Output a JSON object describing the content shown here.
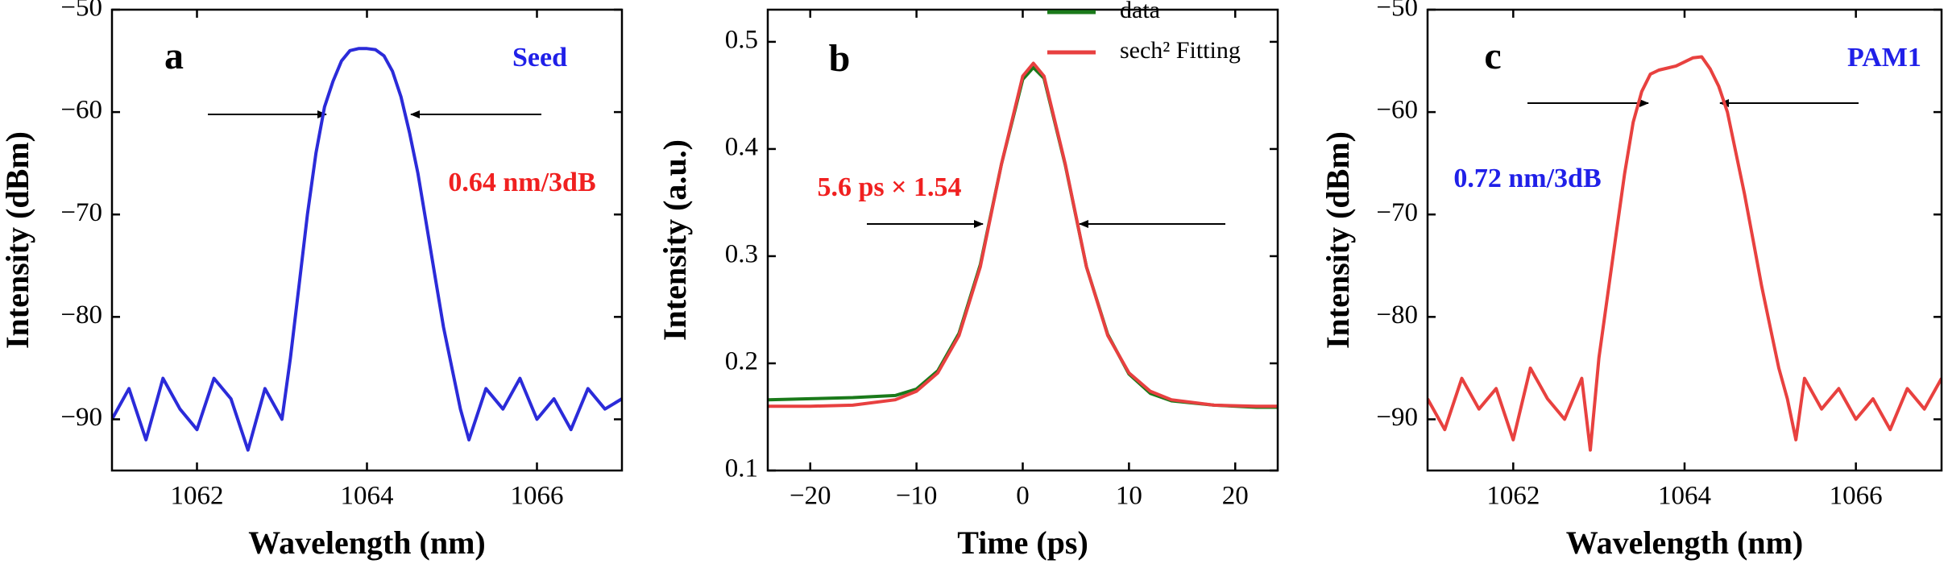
{
  "chart_data": [
    {
      "type": "line",
      "panel_label": "a",
      "ylabel": "Intensity (dBm)",
      "xlabel": "Wavelength (nm)",
      "xlim": [
        1061,
        1067
      ],
      "xticks": [
        1062,
        1064,
        1066
      ],
      "ylim": [
        -95,
        -50
      ],
      "yticks": [
        {
          "value": -50,
          "label": "−50"
        },
        {
          "value": -60,
          "label": "−60"
        },
        {
          "value": -70,
          "label": "−70"
        },
        {
          "value": -80,
          "label": "−80"
        },
        {
          "value": -90,
          "label": "−90"
        }
      ],
      "annotations": [
        {
          "text": "Seed",
          "color": "#2020e8"
        },
        {
          "text": "0.64 nm/3dB",
          "color": "#f02020"
        }
      ],
      "x": [
        1061.0,
        1061.2,
        1061.4,
        1061.6,
        1061.8,
        1062.0,
        1062.2,
        1062.4,
        1062.6,
        1062.8,
        1063.0,
        1063.1,
        1063.2,
        1063.3,
        1063.4,
        1063.5,
        1063.6,
        1063.7,
        1063.8,
        1063.9,
        1064.0,
        1064.1,
        1064.2,
        1064.3,
        1064.4,
        1064.5,
        1064.6,
        1064.7,
        1064.8,
        1064.9,
        1065.0,
        1065.1,
        1065.2,
        1065.4,
        1065.6,
        1065.8,
        1066.0,
        1066.2,
        1066.4,
        1066.6,
        1066.8,
        1067.0
      ],
      "color": "#2b2bd9",
      "values": [
        -90,
        -87,
        -92,
        -86,
        -89,
        -91,
        -86,
        -88,
        -93,
        -87,
        -90,
        -84,
        -77,
        -70,
        -64,
        -59.5,
        -57,
        -55,
        -54,
        -53.8,
        -53.8,
        -53.9,
        -54.5,
        -56,
        -58.5,
        -62,
        -66,
        -71,
        -76,
        -81,
        -85,
        -89,
        -92,
        -87,
        -89,
        -86,
        -90,
        -88,
        -91,
        -87,
        -89,
        -88
      ]
    },
    {
      "type": "line",
      "panel_label": "b",
      "ylabel": "Intensity (a.u.)",
      "xlabel": "Time (ps)",
      "xlim": [
        -24,
        24
      ],
      "xticks": [
        {
          "value": -20,
          "label": "−20"
        },
        {
          "value": -10,
          "label": "−10"
        },
        0,
        10,
        20
      ],
      "ylim": [
        0.1,
        0.53
      ],
      "yticks": [
        0.1,
        0.2,
        0.3,
        0.4,
        0.5
      ],
      "annotations": [
        {
          "text": "5.6 ps × 1.54",
          "color": "#f02020"
        }
      ],
      "x": [
        -24,
        -20,
        -16,
        -12,
        -10,
        -8,
        -6,
        -4,
        -2,
        0,
        1,
        2,
        4,
        6,
        8,
        10,
        12,
        14,
        18,
        22,
        24
      ],
      "series": [
        {
          "name": "data",
          "color": "#1a7a1a",
          "values": [
            0.166,
            0.167,
            0.168,
            0.17,
            0.176,
            0.193,
            0.228,
            0.292,
            0.386,
            0.465,
            0.476,
            0.466,
            0.385,
            0.29,
            0.227,
            0.19,
            0.172,
            0.165,
            0.161,
            0.159,
            0.159
          ]
        },
        {
          "name": "sech² Fitting",
          "color": "#e84040",
          "values": [
            0.16,
            0.16,
            0.161,
            0.166,
            0.174,
            0.191,
            0.226,
            0.29,
            0.386,
            0.468,
            0.48,
            0.468,
            0.386,
            0.29,
            0.226,
            0.191,
            0.174,
            0.166,
            0.161,
            0.16,
            0.16
          ]
        }
      ]
    },
    {
      "type": "line",
      "panel_label": "c",
      "ylabel": "Intensity (dBm)",
      "xlabel": "Wavelength (nm)",
      "xlim": [
        1061,
        1067
      ],
      "xticks": [
        1062,
        1064,
        1066
      ],
      "ylim": [
        -95,
        -50
      ],
      "yticks": [
        {
          "value": -50,
          "label": "−50"
        },
        {
          "value": -60,
          "label": "−60"
        },
        {
          "value": -70,
          "label": "−70"
        },
        {
          "value": -80,
          "label": "−80"
        },
        {
          "value": -90,
          "label": "−90"
        }
      ],
      "annotations": [
        {
          "text": "PAM1",
          "color": "#2020e8"
        },
        {
          "text": "0.72 nm/3dB",
          "color": "#2020e8"
        }
      ],
      "x": [
        1061.0,
        1061.2,
        1061.4,
        1061.6,
        1061.8,
        1062.0,
        1062.2,
        1062.4,
        1062.6,
        1062.8,
        1062.9,
        1063.0,
        1063.1,
        1063.2,
        1063.3,
        1063.4,
        1063.5,
        1063.6,
        1063.7,
        1063.8,
        1063.9,
        1064.0,
        1064.1,
        1064.2,
        1064.3,
        1064.4,
        1064.5,
        1064.6,
        1064.7,
        1064.8,
        1064.9,
        1065.0,
        1065.1,
        1065.2,
        1065.3,
        1065.4,
        1065.6,
        1065.8,
        1066.0,
        1066.2,
        1066.4,
        1066.6,
        1066.8,
        1067.0
      ],
      "color": "#e8413f",
      "values": [
        -88,
        -91,
        -86,
        -89,
        -87,
        -92,
        -85,
        -88,
        -90,
        -86,
        -93,
        -84,
        -78,
        -72,
        -66,
        -61,
        -58,
        -56.3,
        -55.9,
        -55.7,
        -55.5,
        -55.1,
        -54.7,
        -54.6,
        -55.8,
        -57.5,
        -60,
        -64,
        -68,
        -72.5,
        -77,
        -81,
        -85,
        -88,
        -92,
        -86,
        -89,
        -87,
        -90,
        -88,
        -91,
        -87,
        -89,
        -86
      ]
    }
  ]
}
